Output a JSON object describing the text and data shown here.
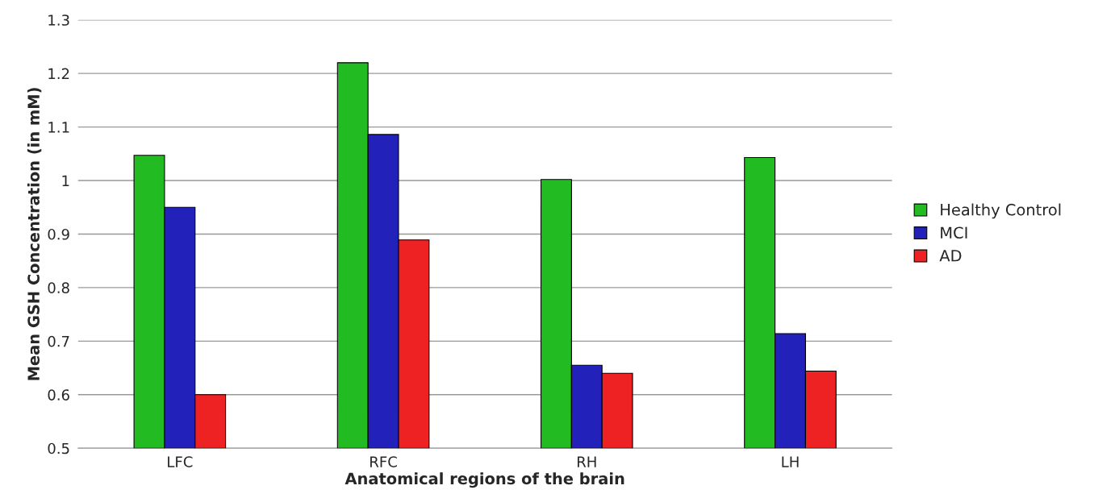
{
  "chart_data": {
    "type": "bar",
    "xlabel": "Anatomical regions of the brain",
    "ylabel": "Mean GSH Concentration (in mM)",
    "categories": [
      "LFC",
      "RFC",
      "RH",
      "LH"
    ],
    "series": [
      {
        "name": "Healthy Control",
        "color": "#22bb22",
        "values": [
          1.047,
          1.22,
          1.002,
          1.043
        ]
      },
      {
        "name": "MCI",
        "color": "#2222bb",
        "values": [
          0.95,
          1.086,
          0.655,
          0.714
        ]
      },
      {
        "name": "AD",
        "color": "#ee2222",
        "values": [
          0.6,
          0.889,
          0.64,
          0.644
        ]
      }
    ],
    "ylim": [
      0.5,
      1.3
    ],
    "yticks": [
      0.5,
      0.6,
      0.7,
      0.8,
      0.9,
      1,
      1.1,
      1.2,
      1.3
    ],
    "grid": "y",
    "legend": "right"
  }
}
